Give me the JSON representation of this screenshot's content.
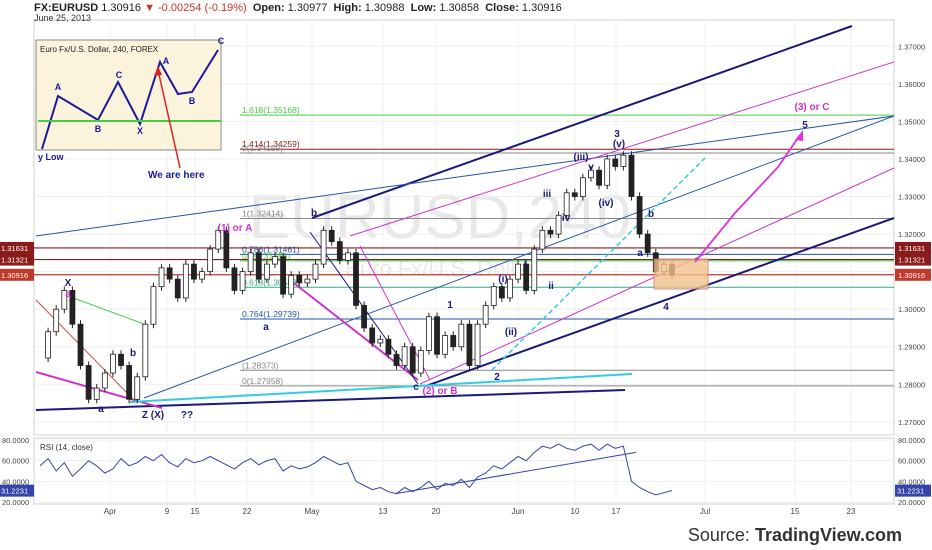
{
  "header": {
    "symbol": "FX:EURUSD",
    "last": "1.30916",
    "change": "-0.00254 (-0.19%)",
    "open_label": "Open:",
    "open": "1.30977",
    "high_label": "High:",
    "high": "1.30988",
    "low_label": "Low:",
    "low": "1.30858",
    "close_label": "Close:",
    "close": "1.30916",
    "date": "June 25, 2013"
  },
  "watermark": "EURUSD,240",
  "watermark2": "Euro Fx/U.S. Dollar",
  "source": {
    "prefix": "Source:",
    "brand": "TradingView.com"
  },
  "legend": {
    "title": "Euro Fx/U.S. Dollar, 240, FOREX",
    "labels": [
      "A",
      "B",
      "C",
      "X",
      "A",
      "B",
      "C"
    ],
    "low_label": "y Low",
    "note": "We are here"
  },
  "colors": {
    "candle": "#222222",
    "navy": "#1a1a7a",
    "magenta": "#cc33cc",
    "cyan": "#33ccdd",
    "green": "#44cc44",
    "darkred": "#8b1a1a",
    "blue": "#2255aa",
    "zone": "#f2c28c",
    "rsi": "#3344aa"
  },
  "chart_data": [
    {
      "type": "candlestick",
      "title": "Euro Fx/U.S. Dollar, 240, FOREX",
      "ylim": [
        1.2665,
        1.377
      ],
      "y_ticks": [
        "1.27000",
        "1.28000",
        "1.29000",
        "1.30000",
        "1.31000",
        "1.32000",
        "1.33000",
        "1.34000",
        "1.35000",
        "1.36000",
        "1.37000"
      ],
      "x_ticks": [
        "Apr",
        "9",
        "15",
        "22",
        "May",
        "13",
        "20",
        "Jun",
        "10",
        "17",
        "Jul",
        "15",
        "23"
      ],
      "price_tags": [
        {
          "label": "1.31631",
          "value": 1.31631,
          "color": "#8b1a1a"
        },
        {
          "label": "1.31321",
          "value": 1.31321,
          "color": "#8b1a1a"
        },
        {
          "label": "1.30916",
          "value": 1.30916,
          "color": "#c0392b"
        }
      ],
      "close_series": [
        1.287,
        1.294,
        1.3,
        1.305,
        1.296,
        1.285,
        1.276,
        1.279,
        1.283,
        1.288,
        1.285,
        1.276,
        1.282,
        1.296,
        1.306,
        1.311,
        1.308,
        1.303,
        1.312,
        1.308,
        1.31,
        1.316,
        1.321,
        1.311,
        1.305,
        1.31,
        1.315,
        1.308,
        1.312,
        1.314,
        1.304,
        1.309,
        1.307,
        1.308,
        1.312,
        1.321,
        1.318,
        1.313,
        1.315,
        1.301,
        1.295,
        1.291,
        1.292,
        1.288,
        1.285,
        1.29,
        1.283,
        1.289,
        1.298,
        1.288,
        1.293,
        1.29,
        1.296,
        1.285,
        1.296,
        1.301,
        1.306,
        1.303,
        1.308,
        1.312,
        1.305,
        1.316,
        1.321,
        1.32,
        1.325,
        1.331,
        1.33,
        1.335,
        1.337,
        1.333,
        1.34,
        1.338,
        1.341,
        1.33,
        1.32,
        1.315,
        1.31,
        1.312,
        1.3091
      ],
      "fib_levels": [
        {
          "label": "1.618(1.35168)",
          "value": 1.35168,
          "color": "#44cc44"
        },
        {
          "label": "1.414(1.34259)",
          "value": 1.34259,
          "color": "#8b1a1a"
        },
        {
          "label": "0(1.34159)",
          "value": 1.34159,
          "color": "#888888"
        },
        {
          "label": "1(1.32414)",
          "value": 1.32414,
          "color": "#888888"
        },
        {
          "label": "0.786(1.31461)",
          "value": 1.31461,
          "color": "#2255aa"
        },
        {
          "label": "0.5(1.31286)",
          "value": 1.31286,
          "color": "#44cc44"
        },
        {
          "label": "0.618(1.30583)",
          "value": 1.30583,
          "color": "#33aa88"
        },
        {
          "label": "0.764(1.29739)",
          "value": 1.29739,
          "color": "#2255aa"
        },
        {
          "label": "(1.28373)",
          "value": 1.28373,
          "color": "#888888"
        },
        {
          "label": "0(1.27958)",
          "value": 1.27958,
          "color": "#888888"
        }
      ],
      "wave_labels": [
        {
          "text": "X",
          "x": 68,
          "y": 286,
          "color": "#1a1a7a"
        },
        {
          "text": "a",
          "x": 68,
          "y": 297,
          "color": "#cc33cc"
        },
        {
          "text": "b",
          "x": 133,
          "y": 356,
          "color": "#1a1a7a"
        },
        {
          "text": "a",
          "x": 101,
          "y": 412,
          "color": "#1a1a7a"
        },
        {
          "text": "Z (X)",
          "x": 153,
          "y": 418,
          "color": "#1a1a7a"
        },
        {
          "text": "??",
          "x": 187,
          "y": 418,
          "color": "#1a1a7a"
        },
        {
          "text": "(1) or A",
          "x": 235,
          "y": 231,
          "color": "#cc33cc"
        },
        {
          "text": "a",
          "x": 266,
          "y": 330,
          "color": "#1a1a7a"
        },
        {
          "text": "b",
          "x": 314,
          "y": 216,
          "color": "#1a1a7a"
        },
        {
          "text": "c",
          "x": 416,
          "y": 390,
          "color": "#1a1a7a"
        },
        {
          "text": "(2) or B",
          "x": 440,
          "y": 394,
          "color": "#cc33cc"
        },
        {
          "text": "1",
          "x": 450,
          "y": 308,
          "color": "#1a1a7a"
        },
        {
          "text": "2",
          "x": 497,
          "y": 380,
          "color": "#1a1a7a"
        },
        {
          "text": "(i)",
          "x": 503,
          "y": 282,
          "color": "#1a1a7a"
        },
        {
          "text": "(ii)",
          "x": 511,
          "y": 335,
          "color": "#1a1a7a"
        },
        {
          "text": "i",
          "x": 525,
          "y": 267,
          "color": "#1a1a7a"
        },
        {
          "text": "ii",
          "x": 551,
          "y": 289,
          "color": "#1a1a7a"
        },
        {
          "text": "iii",
          "x": 547,
          "y": 197,
          "color": "#1a1a7a"
        },
        {
          "text": "iv",
          "x": 566,
          "y": 221,
          "color": "#1a1a7a"
        },
        {
          "text": "(iii)",
          "x": 581,
          "y": 160,
          "color": "#1a1a7a"
        },
        {
          "text": "v",
          "x": 591,
          "y": 170,
          "color": "#1a1a7a"
        },
        {
          "text": "(iv)",
          "x": 606,
          "y": 206,
          "color": "#1a1a7a"
        },
        {
          "text": "3",
          "x": 617,
          "y": 137,
          "color": "#1a1a7a"
        },
        {
          "text": "(v)",
          "x": 619,
          "y": 147,
          "color": "#1a1a7a"
        },
        {
          "text": "b",
          "x": 651,
          "y": 217,
          "color": "#1a1a7a"
        },
        {
          "text": "a",
          "x": 640,
          "y": 256,
          "color": "#1a1a7a"
        },
        {
          "text": "4",
          "x": 666,
          "y": 310,
          "color": "#1a1a7a"
        },
        {
          "text": "5",
          "x": 805,
          "y": 128,
          "color": "#1a1a7a"
        },
        {
          "text": "(3) or C",
          "x": 812,
          "y": 110,
          "color": "#cc33cc"
        }
      ]
    },
    {
      "type": "line",
      "title": "RSI (14, close)",
      "ylim": [
        20,
        80
      ],
      "y_ticks": [
        "20.0000",
        "40.0000",
        "60.0000",
        "80.0000"
      ],
      "last_label": "31.2231",
      "values": [
        55,
        62,
        50,
        58,
        45,
        52,
        60,
        55,
        48,
        52,
        62,
        55,
        58,
        64,
        60,
        66,
        58,
        54,
        62,
        58,
        60,
        64,
        60,
        56,
        52,
        58,
        62,
        56,
        60,
        62,
        50,
        55,
        52,
        54,
        58,
        64,
        60,
        56,
        58,
        40,
        36,
        32,
        34,
        30,
        28,
        34,
        30,
        34,
        40,
        32,
        38,
        36,
        42,
        34,
        44,
        48,
        55,
        52,
        58,
        64,
        60,
        68,
        74,
        72,
        76,
        72,
        70,
        74,
        76,
        70,
        76,
        72,
        74,
        40,
        34,
        30,
        27,
        29,
        31
      ]
    }
  ]
}
